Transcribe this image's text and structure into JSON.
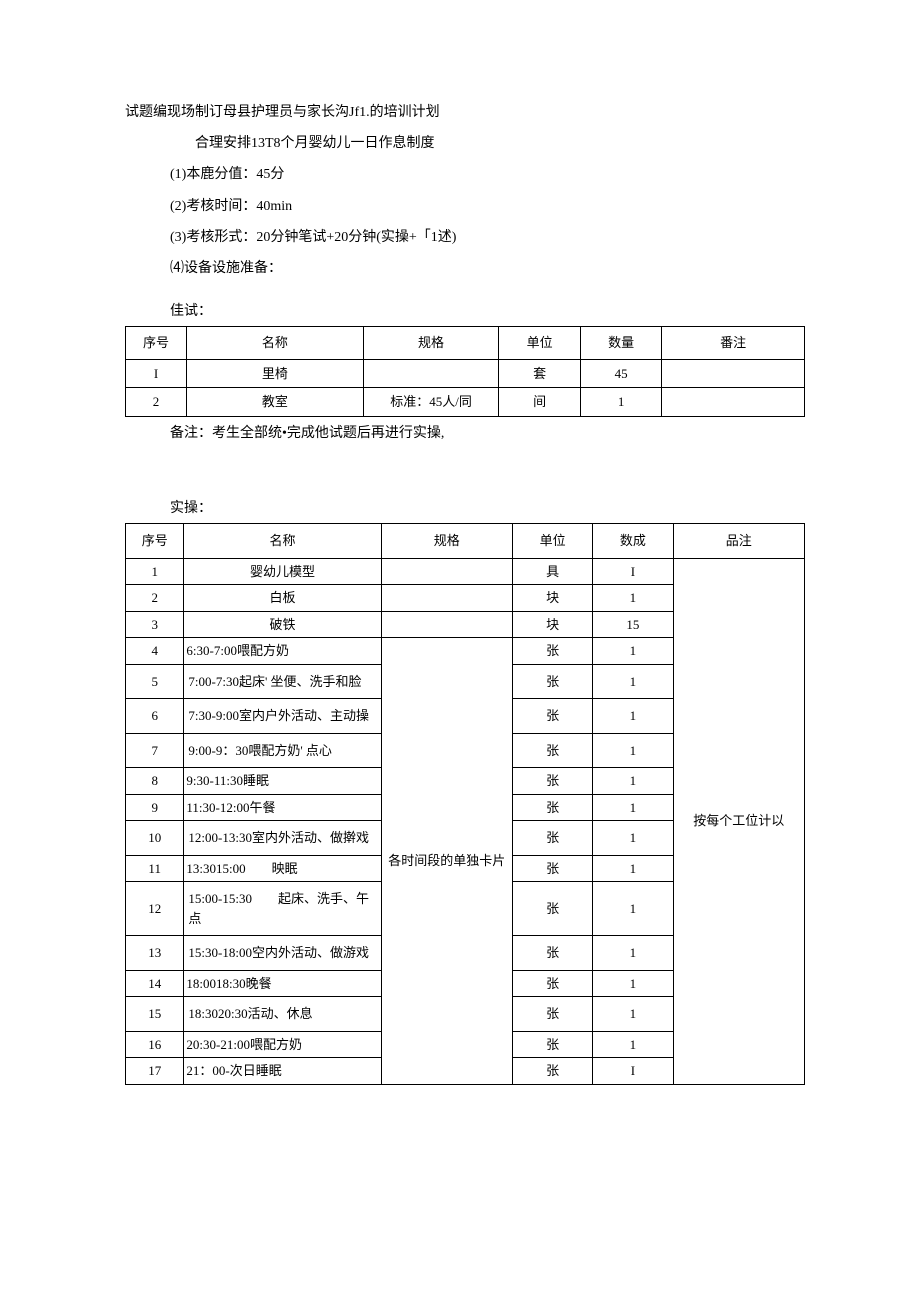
{
  "title": "试题编现场制订母县护理员与家长沟Jf1.的培训计划",
  "subtitle": "合理安排13T8个月婴幼儿一日作息制度",
  "items": [
    "(1)本鹿分值：45分",
    "(2)考核时间：40min",
    "(3)考核形式：20分钟笔试+20分钟(实操+「1述)",
    "⑷设备设施准备："
  ],
  "section1_label": "佳试：",
  "table1": {
    "headers": [
      "序号",
      "名称",
      "规格",
      "单位",
      "数量",
      "番注"
    ],
    "rows": [
      [
        "I",
        "里椅",
        "",
        "套",
        "45",
        ""
      ],
      [
        "2",
        "教室",
        "标准：45人/同",
        "间",
        "1",
        ""
      ]
    ]
  },
  "note": "备注：考生全部统•完成他试题后再进行实操,",
  "section2_label": "实操：",
  "table2": {
    "headers": [
      "序号",
      "名称",
      "规格",
      "单位",
      "数成",
      "品注"
    ],
    "top_rows": [
      {
        "seq": "1",
        "name": "婴幼儿模型",
        "spec": "",
        "unit": "具",
        "qty": "I",
        "center": true
      },
      {
        "seq": "2",
        "name": "白板",
        "spec": "",
        "unit": "块",
        "qty": "1",
        "center": true
      },
      {
        "seq": "3",
        "name": "破铁",
        "spec": "",
        "unit": "块",
        "qty": "15",
        "center": true
      }
    ],
    "merged_spec": "各时间段的单独卡片",
    "schedule_rows": [
      {
        "seq": "4",
        "name": "6:30-7:00喂配方奶",
        "unit": "张",
        "qty": "1",
        "tall": false
      },
      {
        "seq": "5",
        "name": "7:00-7:30起床' 坐便、洗手和脸",
        "unit": "张",
        "qty": "1",
        "tall": true
      },
      {
        "seq": "6",
        "name": "7:30-9:00室内户外活动、主动操",
        "unit": "张",
        "qty": "1",
        "tall": true
      },
      {
        "seq": "7",
        "name": "9:00-9：30喂配方奶' 点心",
        "unit": "张",
        "qty": "1",
        "tall": true
      },
      {
        "seq": "8",
        "name": "9:30-11:30睡眠",
        "unit": "张",
        "qty": "1",
        "tall": false
      },
      {
        "seq": "9",
        "name": "11:30-12:00午餐",
        "unit": "张",
        "qty": "1",
        "tall": false
      },
      {
        "seq": "10",
        "name": "12:00-13:30室内外活动、做擀戏",
        "unit": "张",
        "qty": "1",
        "tall": true
      },
      {
        "seq": "11",
        "name": "13:3015:00　　映眠",
        "unit": "张",
        "qty": "1",
        "tall": false
      },
      {
        "seq": "12",
        "name": "15:00-15:30　　起床、洗手、午点",
        "unit": "张",
        "qty": "1",
        "tall": true
      },
      {
        "seq": "13",
        "name": "15:30-18:00空内外活动、做游戏",
        "unit": "张",
        "qty": "1",
        "tall": true
      },
      {
        "seq": "14",
        "name": "18:0018:30晚餐",
        "unit": "张",
        "qty": "1",
        "tall": false
      },
      {
        "seq": "15",
        "name": "18:3020:30活动、休息",
        "unit": "张",
        "qty": "1",
        "tall": true
      },
      {
        "seq": "16",
        "name": "20:30-21:00喂配方奶",
        "unit": "张",
        "qty": "1",
        "tall": false
      },
      {
        "seq": "17",
        "name": "21：00-次日睡眠",
        "unit": "张",
        "qty": "I",
        "tall": false
      }
    ],
    "remark_merged": "按每个工位计以"
  }
}
